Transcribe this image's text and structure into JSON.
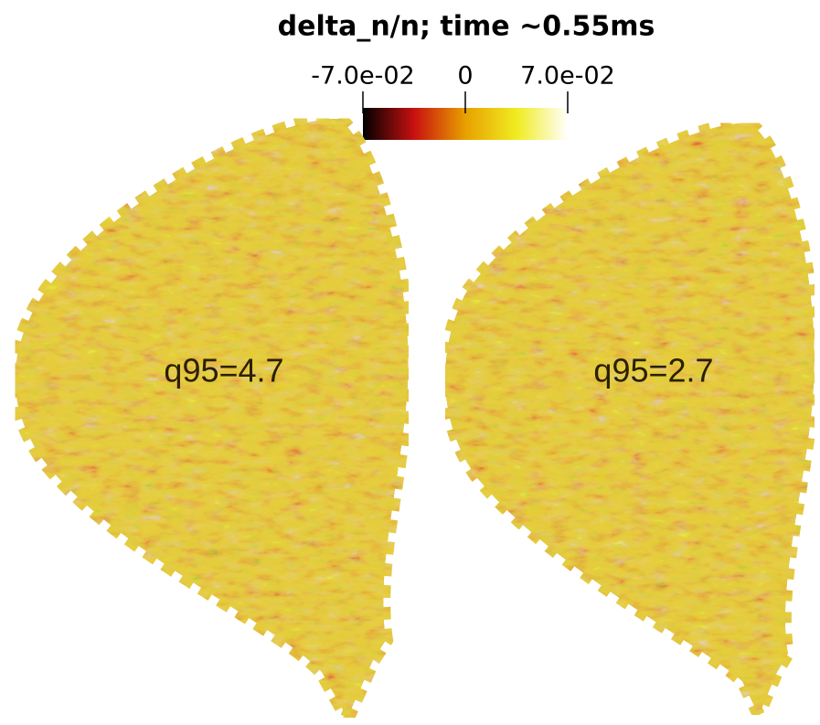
{
  "chart_data": {
    "type": "field",
    "title": "delta_n/n; time ~0.55ms",
    "colorbar": {
      "lim": [
        -0.07,
        0.07
      ],
      "ticks": [
        {
          "value": -0.07,
          "label": "-7.0e-02"
        },
        0,
        {
          "value": 0.07,
          "label": "7.0e-02"
        }
      ],
      "colors": [
        "#000000",
        "#c81010",
        "#e8a000",
        "#f0ec20",
        "#ffffff"
      ]
    },
    "panels": [
      {
        "label": "q95=4.7"
      },
      {
        "label": "q95=2.7"
      }
    ]
  }
}
